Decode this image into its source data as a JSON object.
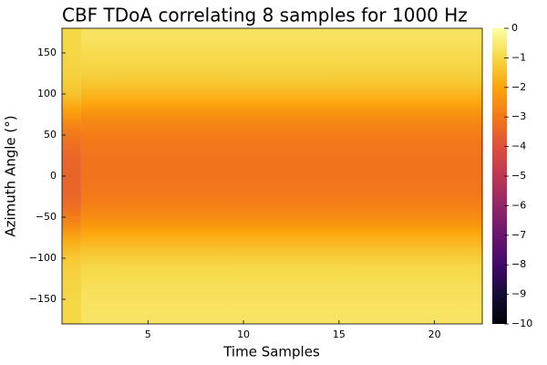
{
  "chart_data": {
    "type": "heatmap",
    "title": "CBF TDoA correlating 8 samples for 1000 Hz",
    "xlabel": "Time Samples",
    "ylabel": "Azimuth Angle (°)",
    "xlim": [
      0.5,
      22.5
    ],
    "ylim": [
      -180,
      180
    ],
    "x_ticks": [
      5,
      10,
      15,
      20
    ],
    "x_tick_labels": [
      "5",
      "10",
      "15",
      "20"
    ],
    "y_ticks": [
      150,
      100,
      50,
      0,
      -50,
      -100,
      -150
    ],
    "y_tick_labels": [
      "150",
      "100",
      "50",
      "0",
      "−50",
      "−100",
      "−150"
    ],
    "colorbar": {
      "colormap": "inferno",
      "range": [
        -10,
        0
      ],
      "ticks": [
        0,
        -1,
        -2,
        -3,
        -4,
        -5,
        -6,
        -7,
        -8,
        -9,
        -10
      ],
      "tick_labels": [
        "0",
        "−1",
        "−2",
        "−3",
        "−4",
        "−5",
        "−6",
        "−7",
        "−8",
        "−9",
        "−10"
      ]
    },
    "columns": [
      {
        "time_sample": 1,
        "profile": "first"
      },
      {
        "time_sample_range": [
          2,
          22
        ],
        "profile": "steady"
      }
    ],
    "profiles": {
      "steady": {
        "azimuth": [
          180,
          165,
          150,
          135,
          120,
          110,
          100,
          90,
          80,
          70,
          60,
          50,
          40,
          30,
          20,
          10,
          0,
          -10,
          -20,
          -30,
          -40,
          -50,
          -60,
          -70,
          -80,
          -90,
          -100,
          -110,
          -120,
          -135,
          -150,
          -165,
          -180
        ],
        "value_db": [
          -0.7,
          -0.75,
          -0.9,
          -1.0,
          -1.2,
          -1.4,
          -1.65,
          -1.95,
          -2.3,
          -2.55,
          -2.75,
          -2.9,
          -3.0,
          -3.05,
          -3.1,
          -3.1,
          -3.1,
          -3.05,
          -3.0,
          -2.9,
          -2.75,
          -2.55,
          -2.3,
          -1.95,
          -1.65,
          -1.4,
          -1.2,
          -1.0,
          -0.9,
          -0.8,
          -0.75,
          -0.7,
          -0.7
        ]
      },
      "first": {
        "azimuth": [
          180,
          150,
          120,
          100,
          80,
          60,
          40,
          20,
          0,
          -20,
          -40,
          -60,
          -80,
          -100,
          -120,
          -150,
          -180
        ],
        "value_db": [
          -1.0,
          -1.0,
          -1.15,
          -1.4,
          -2.1,
          -2.8,
          -3.2,
          -3.45,
          -3.5,
          -3.45,
          -3.2,
          -2.6,
          -1.8,
          -1.3,
          -1.1,
          -1.0,
          -1.0
        ]
      }
    }
  }
}
